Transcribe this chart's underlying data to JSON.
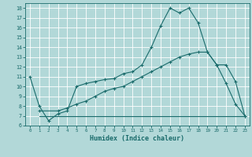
{
  "xlabel": "Humidex (Indice chaleur)",
  "bg_color": "#b2d8d8",
  "grid_color": "#ffffff",
  "line_color": "#1a6b6b",
  "xlim": [
    -0.5,
    23.5
  ],
  "ylim": [
    6,
    18.5
  ],
  "xticks": [
    0,
    1,
    2,
    3,
    4,
    5,
    6,
    7,
    8,
    9,
    10,
    11,
    12,
    13,
    14,
    15,
    16,
    17,
    18,
    19,
    20,
    21,
    22,
    23
  ],
  "yticks": [
    6,
    7,
    8,
    9,
    10,
    11,
    12,
    13,
    14,
    15,
    16,
    17,
    18
  ],
  "line1_x": [
    0,
    1,
    2,
    3,
    4,
    5,
    6,
    7,
    8,
    9,
    10,
    11,
    12,
    13,
    14,
    15,
    16,
    17,
    18,
    19,
    20,
    21,
    22,
    23
  ],
  "line1_y": [
    11.0,
    8.0,
    6.5,
    7.2,
    7.5,
    10.0,
    10.3,
    10.5,
    10.7,
    10.8,
    11.3,
    11.5,
    12.2,
    14.0,
    16.2,
    18.0,
    17.5,
    18.0,
    16.5,
    13.5,
    12.2,
    10.3,
    8.2,
    7.0
  ],
  "line2_x": [
    1,
    3,
    4,
    5,
    6,
    7,
    8,
    9,
    10,
    11,
    12,
    13,
    14,
    15,
    16,
    17,
    18,
    19,
    20,
    21,
    22,
    23
  ],
  "line2_y": [
    7.5,
    7.5,
    7.8,
    8.2,
    8.5,
    9.0,
    9.5,
    9.8,
    10.0,
    10.5,
    11.0,
    11.5,
    12.0,
    12.5,
    13.0,
    13.3,
    13.5,
    13.5,
    12.2,
    12.2,
    10.5,
    7.0
  ],
  "line3_x": [
    1,
    23
  ],
  "line3_y": [
    7.0,
    7.0
  ]
}
